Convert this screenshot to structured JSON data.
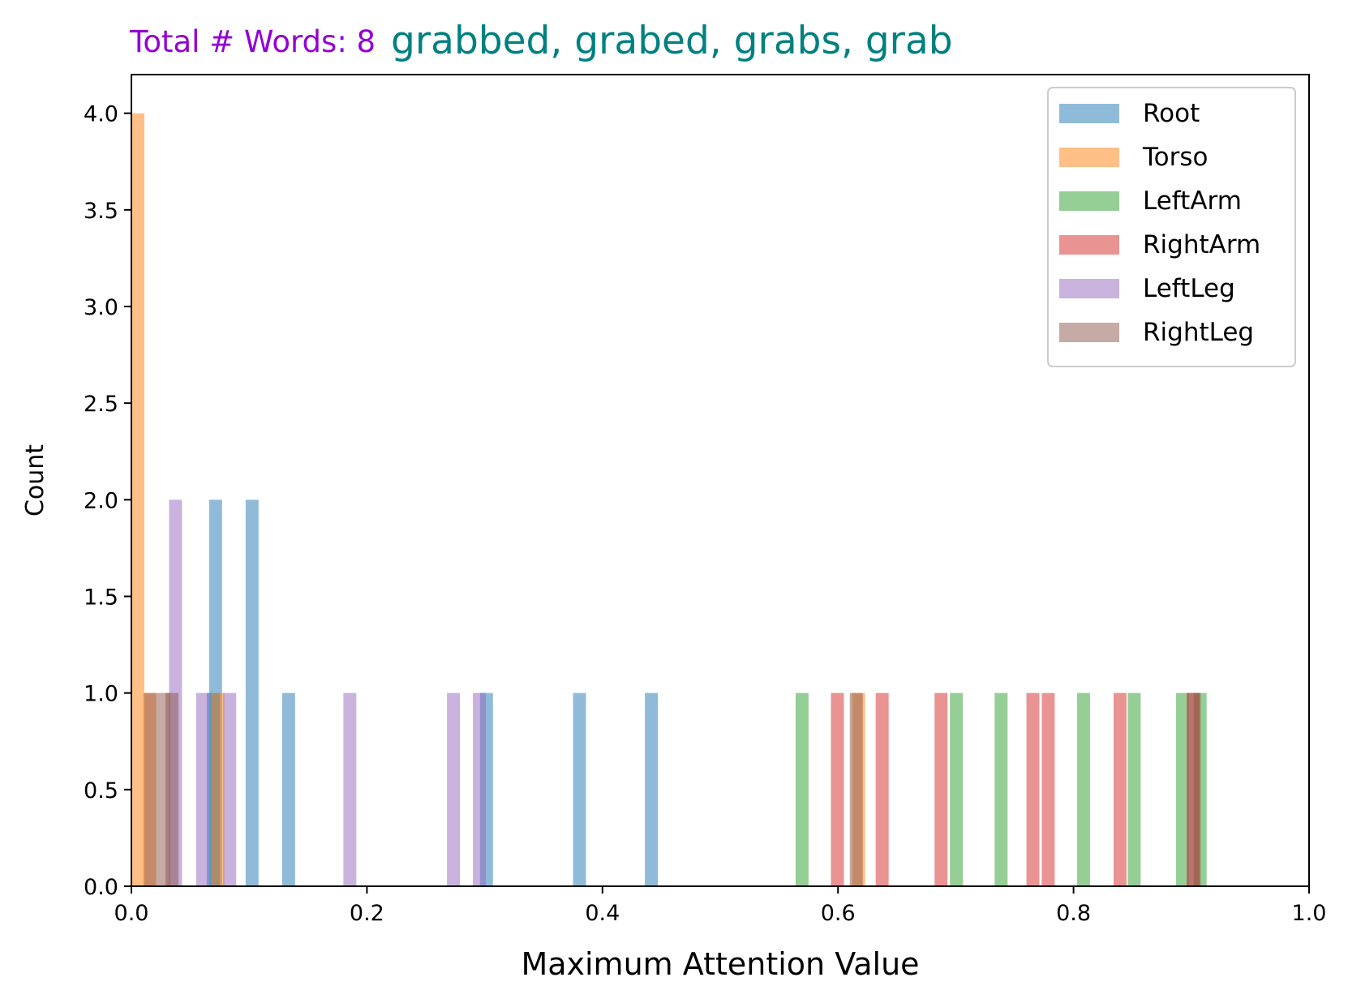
{
  "header": {
    "total_words_label": "Total # Words: 8",
    "total_words_color": "#9400D3",
    "word_list": "grabbed, grabed, grabs, grab",
    "word_list_color": "#008080"
  },
  "chart_data": {
    "type": "bar",
    "xlabel": "Maximum Attention Value",
    "ylabel": "Count",
    "xlim": [
      0.0,
      1.0
    ],
    "ylim": [
      0.0,
      4.2
    ],
    "x_ticks": [
      "0.0",
      "0.2",
      "0.4",
      "0.6",
      "0.8",
      "1.0"
    ],
    "y_ticks": [
      "0.0",
      "0.5",
      "1.0",
      "1.5",
      "2.0",
      "2.5",
      "3.0",
      "3.5",
      "4.0"
    ],
    "grid": false,
    "legend_position": "top-right",
    "bin_width": 0.011,
    "series": [
      {
        "name": "Root",
        "color": "#1f77b4",
        "bars": [
          {
            "x": 0.064,
            "count": 1
          },
          {
            "x": 0.066,
            "count": 2
          },
          {
            "x": 0.097,
            "count": 2
          },
          {
            "x": 0.128,
            "count": 1
          },
          {
            "x": 0.296,
            "count": 1
          },
          {
            "x": 0.375,
            "count": 1
          },
          {
            "x": 0.436,
            "count": 1
          }
        ]
      },
      {
        "name": "Torso",
        "color": "#ff7f0e",
        "bars": [
          {
            "x": 0.0,
            "count": 4
          },
          {
            "x": 0.01,
            "count": 1
          },
          {
            "x": 0.068,
            "count": 1
          },
          {
            "x": 0.612,
            "count": 1
          }
        ]
      },
      {
        "name": "LeftArm",
        "color": "#2ca02c",
        "bars": [
          {
            "x": 0.564,
            "count": 1
          },
          {
            "x": 0.695,
            "count": 1
          },
          {
            "x": 0.733,
            "count": 1
          },
          {
            "x": 0.803,
            "count": 1
          },
          {
            "x": 0.846,
            "count": 1
          },
          {
            "x": 0.887,
            "count": 1
          },
          {
            "x": 0.902,
            "count": 1
          }
        ]
      },
      {
        "name": "RightArm",
        "color": "#d62728",
        "bars": [
          {
            "x": 0.594,
            "count": 1
          },
          {
            "x": 0.632,
            "count": 1
          },
          {
            "x": 0.682,
            "count": 1
          },
          {
            "x": 0.76,
            "count": 1
          },
          {
            "x": 0.773,
            "count": 1
          },
          {
            "x": 0.834,
            "count": 1
          },
          {
            "x": 0.896,
            "count": 1
          }
        ]
      },
      {
        "name": "LeftLeg",
        "color": "#9467bd",
        "bars": [
          {
            "x": 0.032,
            "count": 2
          },
          {
            "x": 0.055,
            "count": 1
          },
          {
            "x": 0.078,
            "count": 1
          },
          {
            "x": 0.18,
            "count": 1
          },
          {
            "x": 0.268,
            "count": 1
          },
          {
            "x": 0.29,
            "count": 1
          }
        ]
      },
      {
        "name": "RightLeg",
        "color": "#8c564b",
        "bars": [
          {
            "x": 0.011,
            "count": 1
          },
          {
            "x": 0.022,
            "count": 1
          },
          {
            "x": 0.029,
            "count": 1
          },
          {
            "x": 0.61,
            "count": 1
          },
          {
            "x": 0.897,
            "count": 1
          }
        ]
      }
    ]
  }
}
